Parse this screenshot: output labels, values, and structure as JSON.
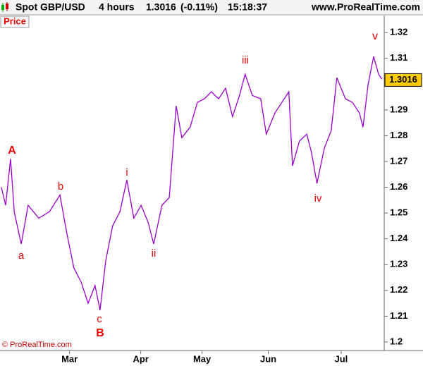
{
  "header": {
    "title": "Spot GBP/USD",
    "timeframe": "4 hours",
    "change_label": "(-0.11%)",
    "time": "15:18:37",
    "site": "www.ProRealTime.com"
  },
  "chart_data": {
    "type": "line",
    "panel_label": "Price",
    "copyright": "© ProRealTime.com",
    "last_value": 1.3016,
    "x": [
      0.4,
      1.7,
      3.2,
      4.3,
      6.4,
      8.5,
      11.7,
      14.9,
      18.1,
      20.2,
      22.3,
      24.5,
      26.6,
      28.7,
      30.2,
      31.9,
      34.0,
      36.2,
      38.3,
      40.4,
      42.6,
      44.7,
      46.4,
      48.9,
      51.1,
      53.2,
      54.9,
      57.4,
      59.6,
      61.7,
      63.8,
      66.0,
      68.1,
      70.2,
      72.3,
      74.0,
      76.2,
      78.7,
      80.4,
      83.0,
      85.1,
      87.2,
      88.3,
      90.4,
      92.6,
      94.0,
      95.7,
      97.9,
      100.0,
      101.7,
      104.3,
      106.4,
      108.5,
      109.6,
      111.1,
      112.8,
      114.3,
      115.3
    ],
    "series": [
      {
        "name": "GBP/USD",
        "color": "#9900cc",
        "values": [
          1.26,
          1.253,
          1.271,
          1.2505,
          1.238,
          1.253,
          1.248,
          1.2505,
          1.257,
          1.242,
          1.2287,
          1.2232,
          1.215,
          1.2219,
          1.2123,
          1.2314,
          1.245,
          1.2505,
          1.2628,
          1.248,
          1.253,
          1.2465,
          1.238,
          1.253,
          1.256,
          1.2915,
          1.2792,
          1.2833,
          1.2929,
          1.2943,
          1.297,
          1.2943,
          1.2984,
          1.2874,
          1.2956,
          1.3038,
          1.2956,
          1.2943,
          1.2806,
          1.2888,
          1.2929,
          1.297,
          1.2683,
          1.2779,
          1.2806,
          1.2738,
          1.2615,
          1.2751,
          1.282,
          1.3025,
          1.2943,
          1.2929,
          1.2888,
          1.2833,
          1.2997,
          1.3107,
          1.3038,
          1.3019
        ]
      }
    ],
    "xlim": [
      0,
      116
    ],
    "xticks": [
      {
        "value": 21,
        "label": "Mar"
      },
      {
        "value": 42.5,
        "label": "Apr"
      },
      {
        "value": 61,
        "label": "May"
      },
      {
        "value": 81,
        "label": "Jun"
      },
      {
        "value": 103,
        "label": "Jul"
      }
    ],
    "ylim": [
      1.1967,
      1.3266
    ],
    "yticks": [
      1.2,
      1.21,
      1.22,
      1.23,
      1.24,
      1.25,
      1.26,
      1.27,
      1.28,
      1.29,
      1.3,
      1.31,
      1.32
    ],
    "annotations": [
      "A",
      "a",
      "b",
      "c",
      "B",
      "i",
      "ii",
      "iii",
      "iv",
      "v"
    ]
  }
}
